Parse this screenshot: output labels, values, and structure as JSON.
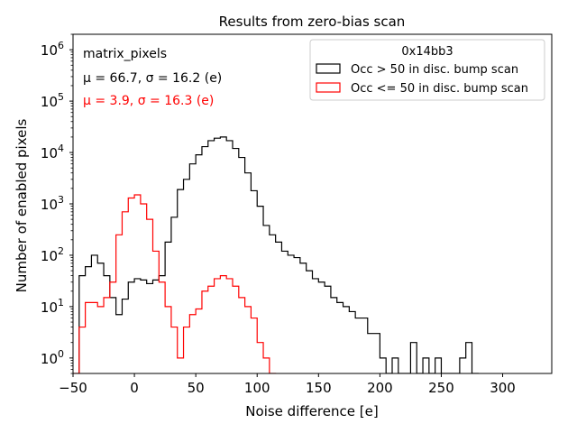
{
  "chart_data": {
    "type": "histogram",
    "title": "Results from zero-bias scan",
    "xlabel": "Noise difference [e]",
    "ylabel": "Number of enabled pixels",
    "xlim": [
      -50,
      340
    ],
    "ylim": [
      0.5,
      2000000
    ],
    "yscale": "log",
    "bin_width": 5,
    "x_ticks": [
      -50,
      0,
      50,
      100,
      150,
      200,
      250,
      300
    ],
    "y_ticks": [
      {
        "value": 1,
        "label": "10^0",
        "base": "10",
        "exp": "0"
      },
      {
        "value": 10,
        "label": "10^1",
        "base": "10",
        "exp": "1"
      },
      {
        "value": 100,
        "label": "10^2",
        "base": "10",
        "exp": "2"
      },
      {
        "value": 1000,
        "label": "10^3",
        "base": "10",
        "exp": "3"
      },
      {
        "value": 10000,
        "label": "10^4",
        "base": "10",
        "exp": "4"
      },
      {
        "value": 100000,
        "label": "10^5",
        "base": "10",
        "exp": "5"
      },
      {
        "value": 1000000,
        "label": "10^6",
        "base": "10",
        "exp": "6"
      }
    ],
    "annotations": [
      {
        "text": "matrix_pixels",
        "color": "#000000"
      },
      {
        "text": "μ = 66.7, σ = 16.2 (e)",
        "color": "#000000"
      },
      {
        "text": "μ = 3.9, σ = 16.3 (e)",
        "color": "#ff0000"
      }
    ],
    "legend": {
      "title": "0x14bb3",
      "placement": "top-right"
    },
    "series": [
      {
        "name": "Occ > 50 in disc. bump scan",
        "color": "#000000",
        "bins": [
          [
            -45,
            40
          ],
          [
            -40,
            60
          ],
          [
            -35,
            100
          ],
          [
            -30,
            70
          ],
          [
            -25,
            40
          ],
          [
            -20,
            15
          ],
          [
            -15,
            7
          ],
          [
            -10,
            14
          ],
          [
            -5,
            30
          ],
          [
            0,
            35
          ],
          [
            5,
            33
          ],
          [
            10,
            28
          ],
          [
            15,
            33
          ],
          [
            20,
            40
          ],
          [
            25,
            180
          ],
          [
            30,
            550
          ],
          [
            35,
            1900
          ],
          [
            40,
            3000
          ],
          [
            45,
            6000
          ],
          [
            50,
            9000
          ],
          [
            55,
            13000
          ],
          [
            60,
            17000
          ],
          [
            65,
            19000
          ],
          [
            70,
            20000
          ],
          [
            75,
            17000
          ],
          [
            80,
            12000
          ],
          [
            85,
            8000
          ],
          [
            90,
            4000
          ],
          [
            95,
            1800
          ],
          [
            100,
            900
          ],
          [
            105,
            380
          ],
          [
            110,
            250
          ],
          [
            115,
            180
          ],
          [
            120,
            120
          ],
          [
            125,
            100
          ],
          [
            130,
            90
          ],
          [
            135,
            70
          ],
          [
            140,
            50
          ],
          [
            145,
            35
          ],
          [
            150,
            30
          ],
          [
            155,
            25
          ],
          [
            160,
            15
          ],
          [
            165,
            12
          ],
          [
            170,
            10
          ],
          [
            175,
            8
          ],
          [
            180,
            6
          ],
          [
            185,
            6
          ],
          [
            190,
            3
          ],
          [
            195,
            3
          ],
          [
            200,
            1
          ],
          [
            205,
            0.5
          ],
          [
            210,
            1
          ],
          [
            215,
            0.5
          ],
          [
            220,
            0.5
          ],
          [
            225,
            2
          ],
          [
            230,
            0.5
          ],
          [
            235,
            1
          ],
          [
            240,
            0.5
          ],
          [
            245,
            1
          ],
          [
            250,
            0.5
          ],
          [
            255,
            0.5
          ],
          [
            260,
            0.5
          ],
          [
            265,
            1
          ],
          [
            270,
            2
          ],
          [
            275,
            0.5
          ]
        ]
      },
      {
        "name": "Occ <= 50 in disc. bump scan",
        "color": "#ff0000",
        "bins": [
          [
            -50,
            0.5
          ],
          [
            -45,
            4
          ],
          [
            -40,
            12
          ],
          [
            -35,
            12
          ],
          [
            -30,
            10
          ],
          [
            -25,
            15
          ],
          [
            -20,
            30
          ],
          [
            -15,
            250
          ],
          [
            -10,
            700
          ],
          [
            -5,
            1300
          ],
          [
            0,
            1500
          ],
          [
            5,
            1000
          ],
          [
            10,
            500
          ],
          [
            15,
            120
          ],
          [
            20,
            30
          ],
          [
            25,
            10
          ],
          [
            30,
            4
          ],
          [
            35,
            1
          ],
          [
            40,
            4
          ],
          [
            45,
            7
          ],
          [
            50,
            9
          ],
          [
            55,
            20
          ],
          [
            60,
            25
          ],
          [
            65,
            35
          ],
          [
            70,
            40
          ],
          [
            75,
            35
          ],
          [
            80,
            25
          ],
          [
            85,
            15
          ],
          [
            90,
            10
          ],
          [
            95,
            6
          ],
          [
            100,
            2
          ],
          [
            105,
            1
          ],
          [
            110,
            0.5
          ]
        ]
      }
    ]
  }
}
